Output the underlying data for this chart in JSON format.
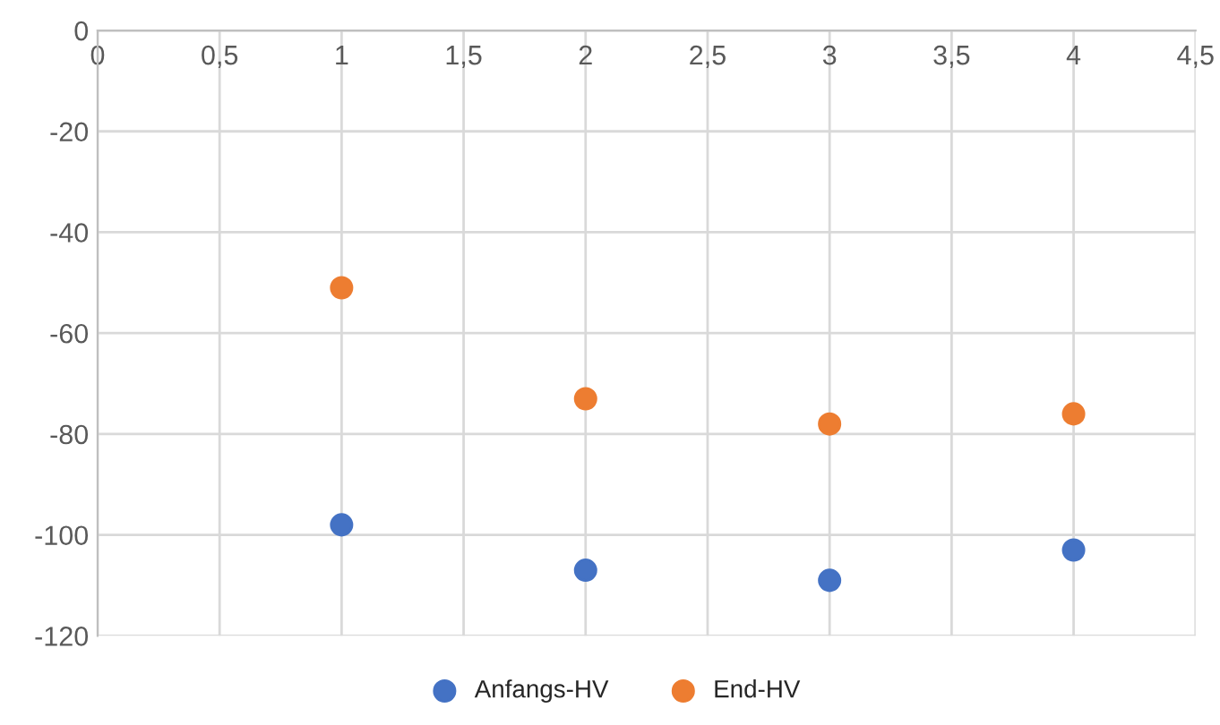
{
  "chart_data": {
    "type": "scatter",
    "series": [
      {
        "name": "Anfangs-HV",
        "color": "#4472c4",
        "x": [
          1,
          2,
          3,
          4
        ],
        "values": [
          -98,
          -107,
          -109,
          -103
        ]
      },
      {
        "name": "End-HV",
        "color": "#ed7d31",
        "x": [
          1,
          2,
          3,
          4
        ],
        "values": [
          -51,
          -73,
          -78,
          -76
        ]
      }
    ],
    "xlim": [
      0,
      4.5
    ],
    "xticks": [
      0,
      {
        "value": 0.5,
        "label": "0,5"
      },
      1,
      {
        "value": 1.5,
        "label": "1,5"
      },
      2,
      {
        "value": 2.5,
        "label": "2,5"
      },
      3,
      {
        "value": 3.5,
        "label": "3,5"
      },
      4,
      {
        "value": 4.5,
        "label": "4,5"
      }
    ],
    "ylim": [
      -120,
      0
    ],
    "yticks": [
      -120,
      -100,
      -80,
      -60,
      -40,
      -20,
      0
    ],
    "grid": true,
    "legend": "bottom",
    "marker": "circle"
  }
}
